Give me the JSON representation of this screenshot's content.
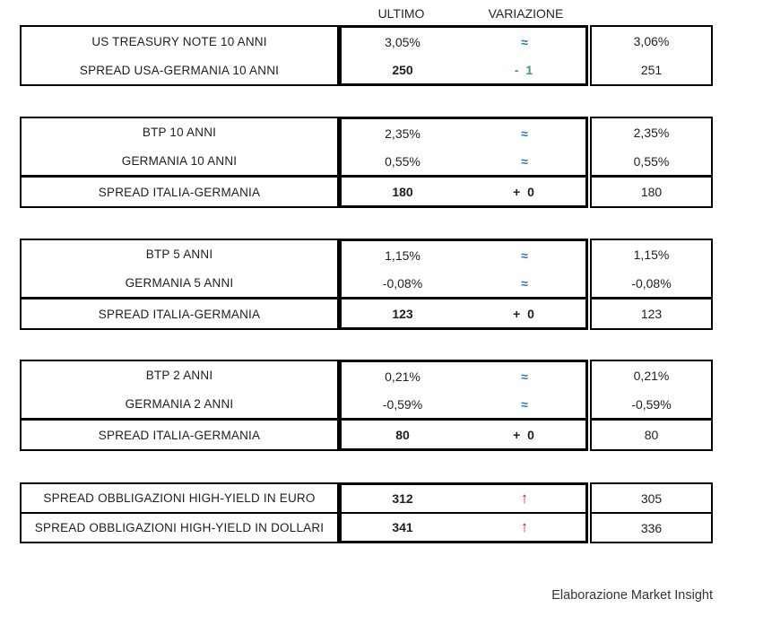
{
  "header": {
    "ultimo": "ULTIMO",
    "variazione": "VARIAZIONE"
  },
  "colors": {
    "approx_blue": "#2E74B5",
    "down_green": "#3EA156",
    "up_red": "#C3292B"
  },
  "blocks": [
    {
      "rows": [
        {
          "label": "US TREASURY NOTE 10 ANNI",
          "ultimo": "3,05%",
          "variazione": "≈",
          "trend": "flat",
          "previous": "3,06%"
        },
        {
          "label": "SPREAD USA-GERMANIA 10 ANNI",
          "ultimo": "250",
          "variazione": "- 1",
          "trend": "down",
          "previous": "251"
        }
      ]
    },
    {
      "rows": [
        {
          "label": "BTP 10 ANNI",
          "ultimo": "2,35%",
          "variazione": "≈",
          "trend": "flat",
          "previous": "2,35%"
        },
        {
          "label": "GERMANIA 10 ANNI",
          "ultimo": "0,55%",
          "variazione": "≈",
          "trend": "flat",
          "previous": "0,55%"
        },
        {
          "label": "SPREAD ITALIA-GERMANIA",
          "ultimo": "180",
          "variazione": "+ 0",
          "trend": "zero",
          "previous": "180"
        }
      ]
    },
    {
      "rows": [
        {
          "label": "BTP 5 ANNI",
          "ultimo": "1,15%",
          "variazione": "≈",
          "trend": "flat",
          "previous": "1,15%"
        },
        {
          "label": "GERMANIA 5 ANNI",
          "ultimo": "-0,08%",
          "variazione": "≈",
          "trend": "flat",
          "previous": "-0,08%"
        },
        {
          "label": "SPREAD ITALIA-GERMANIA",
          "ultimo": "123",
          "variazione": "+ 0",
          "trend": "zero",
          "previous": "123"
        }
      ]
    },
    {
      "rows": [
        {
          "label": "BTP 2 ANNI",
          "ultimo": "0,21%",
          "variazione": "≈",
          "trend": "flat",
          "previous": "0,21%"
        },
        {
          "label": "GERMANIA 2 ANNI",
          "ultimo": "-0,59%",
          "variazione": "≈",
          "trend": "flat",
          "previous": "-0,59%"
        },
        {
          "label": "SPREAD ITALIA-GERMANIA",
          "ultimo": "80",
          "variazione": "+ 0",
          "trend": "zero",
          "previous": "80"
        }
      ]
    },
    {
      "rows": [
        {
          "label": "SPREAD OBBLIGAZIONI HIGH-YIELD IN EURO",
          "ultimo": "312",
          "variazione": "↑",
          "trend": "up",
          "previous": "305"
        },
        {
          "label": "SPREAD OBBLIGAZIONI HIGH-YIELD IN DOLLARI",
          "ultimo": "341",
          "variazione": "↑",
          "trend": "up",
          "previous": "336"
        }
      ]
    }
  ],
  "footer": {
    "credit": "Elaborazione Market Insight"
  }
}
